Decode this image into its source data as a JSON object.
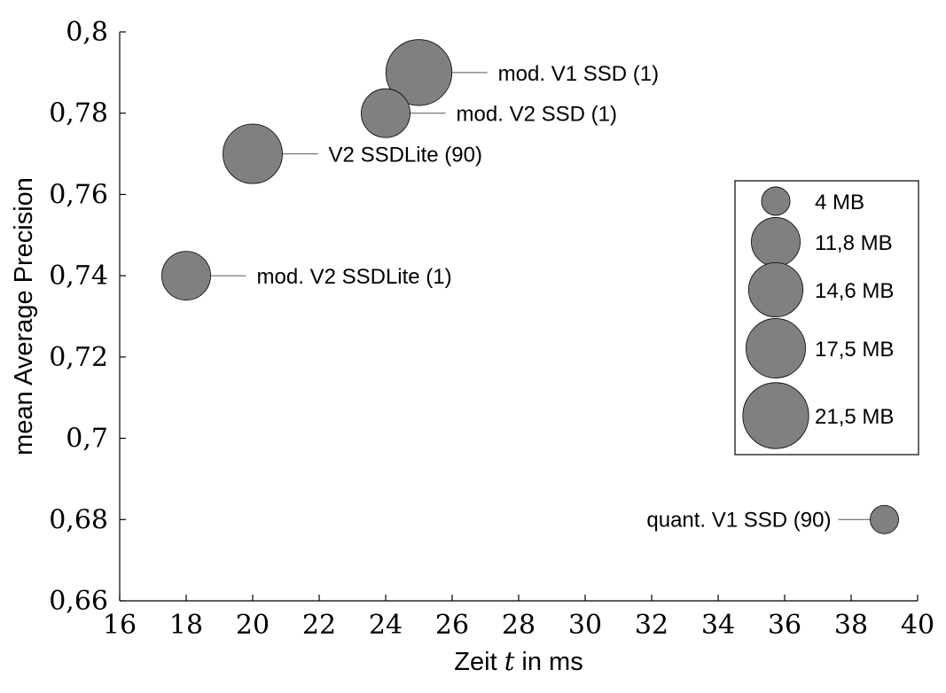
{
  "chart_data": {
    "type": "scatter",
    "xlabel": "Zeit t in ms",
    "xlabel_parts": {
      "before": "Zeit ",
      "var": "t",
      "after": " in ms"
    },
    "ylabel": "mean Average Precision",
    "xlim": [
      16,
      40
    ],
    "ylim": [
      0.66,
      0.8
    ],
    "x_ticks": [
      16,
      18,
      20,
      22,
      24,
      26,
      28,
      30,
      32,
      34,
      36,
      38,
      40
    ],
    "x_tick_labels": [
      "16",
      "18",
      "20",
      "22",
      "24",
      "26",
      "28",
      "30",
      "32",
      "34",
      "36",
      "38",
      "40"
    ],
    "y_ticks": [
      0.66,
      0.68,
      0.7,
      0.72,
      0.74,
      0.76,
      0.78,
      0.8
    ],
    "y_tick_labels": [
      "0,66",
      "0,68",
      "0,7",
      "0,72",
      "0,74",
      "0,76",
      "0,78",
      "0,8"
    ],
    "grid": false,
    "marker_color": "#808080",
    "points": [
      {
        "label": "mod. V1 SSD (1)",
        "x": 25,
        "y": 0.79,
        "size_mb": 21.5,
        "label_side": "right"
      },
      {
        "label": "mod. V2 SSD (1)",
        "x": 24,
        "y": 0.78,
        "size_mb": 11.8,
        "label_side": "right"
      },
      {
        "label": "V2 SSDLite (90)",
        "x": 20,
        "y": 0.77,
        "size_mb": 17.5,
        "label_side": "right"
      },
      {
        "label": "mod. V2 SSDLite (1)",
        "x": 18,
        "y": 0.74,
        "size_mb": 11.8,
        "label_side": "right"
      },
      {
        "label": "quant. V1 SSD (90)",
        "x": 39,
        "y": 0.68,
        "size_mb": 4,
        "label_side": "left"
      }
    ],
    "legend": {
      "placement": "right",
      "entries": [
        {
          "label": "4 MB",
          "size_mb": 4
        },
        {
          "label": "11,8 MB",
          "size_mb": 11.8
        },
        {
          "label": "14,6 MB",
          "size_mb": 14.6
        },
        {
          "label": "17,5 MB",
          "size_mb": 17.5
        },
        {
          "label": "21,5 MB",
          "size_mb": 21.5
        }
      ]
    }
  }
}
